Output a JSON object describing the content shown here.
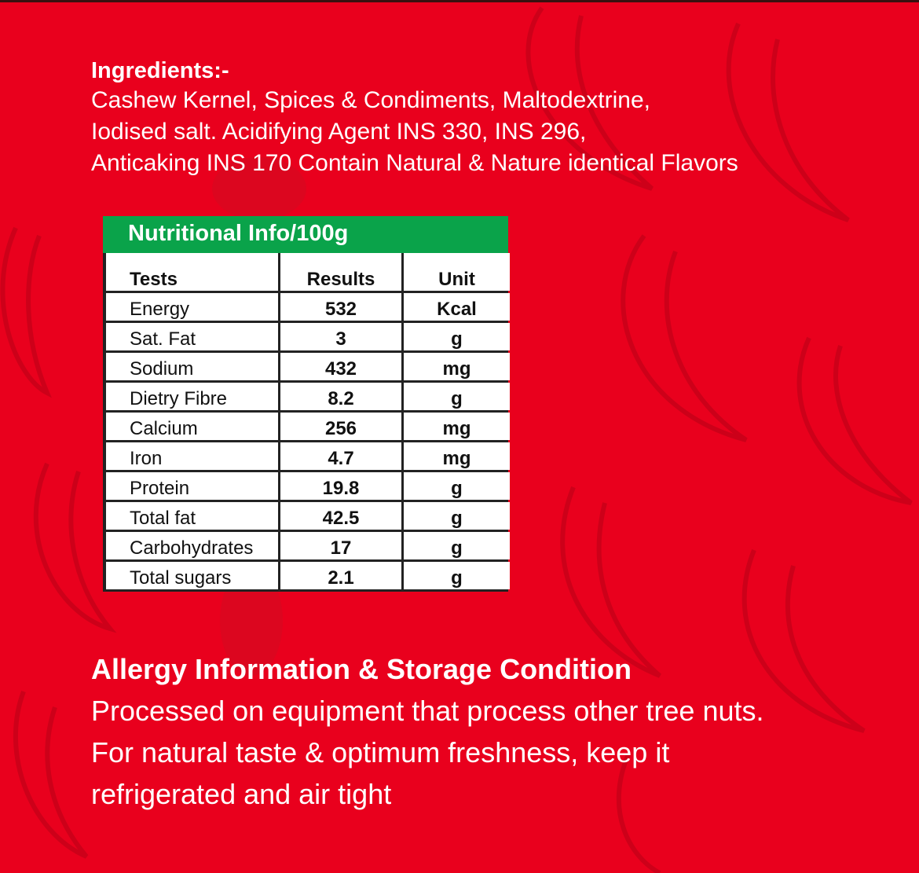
{
  "colors": {
    "background": "#e9001d",
    "table_header": "#0aa34a",
    "pattern": "#c80018"
  },
  "ingredients": {
    "heading": "Ingredients:-",
    "lines": [
      "Cashew Kernel, Spices & Condiments, Maltodextrine,",
      "Iodised salt. Acidifying Agent INS 330, INS 296,",
      "Anticaking INS 170 Contain Natural & Nature identical Flavors"
    ]
  },
  "nutrition": {
    "title": "Nutritional Info/100g",
    "columns": [
      "Tests",
      "Results",
      "Unit"
    ],
    "rows": [
      [
        "Energy",
        "532",
        "Kcal"
      ],
      [
        "Sat. Fat",
        "3",
        "g"
      ],
      [
        "Sodium",
        "432",
        "mg"
      ],
      [
        "Dietry Fibre",
        "8.2",
        "g"
      ],
      [
        "Calcium",
        "256",
        "mg"
      ],
      [
        "Iron",
        "4.7",
        "mg"
      ],
      [
        "Protein",
        "19.8",
        "g"
      ],
      [
        "Total fat",
        "42.5",
        "g"
      ],
      [
        "Carbohydrates",
        "17",
        "g"
      ],
      [
        "Total sugars",
        "2.1",
        "g"
      ]
    ]
  },
  "allergy": {
    "heading": "Allergy Information & Storage Condition",
    "lines": [
      "Processed on equipment that process other tree nuts.",
      "For natural taste & optimum freshness, keep it",
      "refrigerated and air tight"
    ]
  }
}
